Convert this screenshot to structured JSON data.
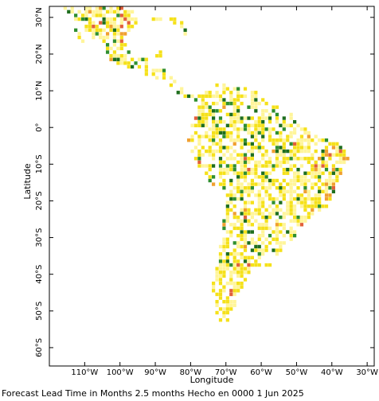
{
  "map": {
    "xlabel": "Longitude",
    "ylabel": "Latitude",
    "lon_ticks": [
      {
        "value": -110,
        "label": "110°W"
      },
      {
        "value": -100,
        "label": "100°W"
      },
      {
        "value": -90,
        "label": "90°W"
      },
      {
        "value": -80,
        "label": "80°W"
      },
      {
        "value": -70,
        "label": "70°W"
      },
      {
        "value": -60,
        "label": "60°W"
      },
      {
        "value": -50,
        "label": "50°W"
      },
      {
        "value": -40,
        "label": "40°W"
      },
      {
        "value": -30,
        "label": "30°W"
      }
    ],
    "lat_ticks": [
      {
        "value": 30,
        "label": "30°N"
      },
      {
        "value": 20,
        "label": "20°N"
      },
      {
        "value": 10,
        "label": "10°N"
      },
      {
        "value": 0,
        "label": "0°"
      },
      {
        "value": -10,
        "label": "10°S"
      },
      {
        "value": -20,
        "label": "20°S"
      },
      {
        "value": -30,
        "label": "30°S"
      },
      {
        "value": -40,
        "label": "40°S"
      },
      {
        "value": -50,
        "label": "50°S"
      },
      {
        "value": -60,
        "label": "60°S"
      }
    ],
    "lon_range": [
      -120,
      -28
    ],
    "lat_range": [
      -65,
      33
    ],
    "colors": {
      "light_yellow": "#fff59a",
      "yellow": "#f5e11a",
      "orange": "#f0a030",
      "red_orange": "#e2603a",
      "dark_green": "#1e6e1e",
      "green": "#2f8f2f"
    }
  },
  "footer": {
    "caption": "Forecast Lead Time in Months 2.5 months Hecho en 0000 1 Jun 2025"
  }
}
